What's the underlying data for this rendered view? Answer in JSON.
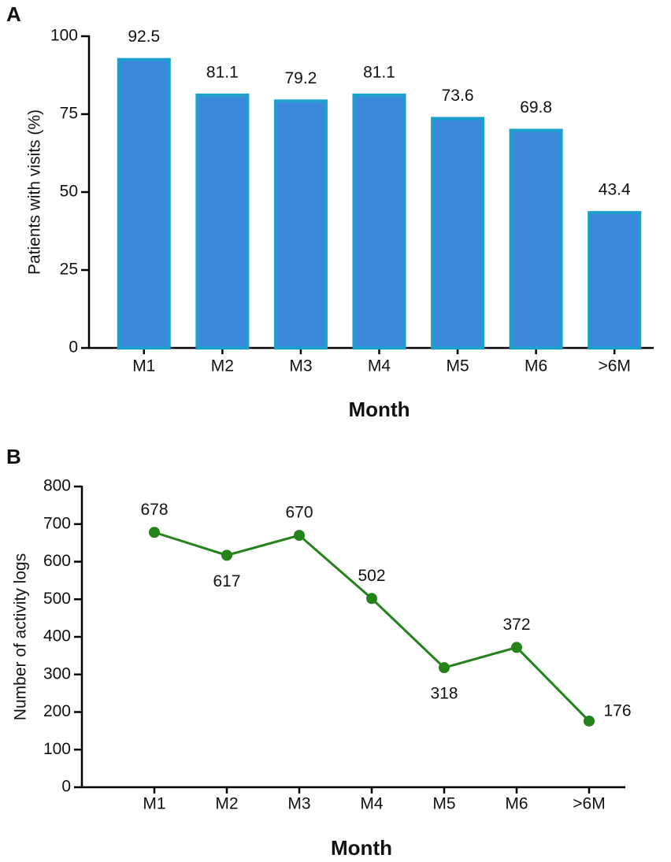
{
  "chart_data": [
    {
      "type": "bar",
      "panel_label": "A",
      "x_label": "Month",
      "y_label": "Patients with visits (%)",
      "categories": [
        "M1",
        "M2",
        "M3",
        "M4",
        "M5",
        "M6",
        ">6M"
      ],
      "values": [
        92.5,
        81.1,
        79.2,
        81.1,
        73.6,
        69.8,
        43.4
      ],
      "color": "#3b87d9",
      "edge_color": "#1b9fcc",
      "ylim": [
        0,
        100
      ],
      "yticks": [
        0,
        25,
        50,
        75,
        100
      ]
    },
    {
      "type": "line",
      "panel_label": "B",
      "x_label": "Month",
      "y_label": "Number of activity logs",
      "categories": [
        "M1",
        "M2",
        "M3",
        "M4",
        "M5",
        "M6",
        ">6M"
      ],
      "values": [
        678,
        617,
        670,
        502,
        318,
        372,
        176
      ],
      "color": "#23821a",
      "ylim": [
        0,
        800
      ],
      "yticks": [
        0,
        100,
        200,
        300,
        400,
        500,
        600,
        700,
        800
      ]
    }
  ]
}
